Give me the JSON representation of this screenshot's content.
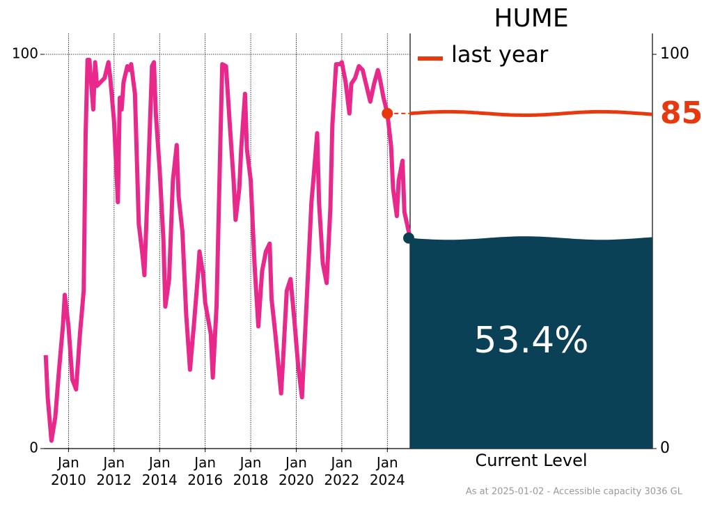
{
  "chart_data": {
    "type": "line",
    "title": "HUME",
    "x": [
      "2009-01",
      "2009-02",
      "2009-04",
      "2009-06",
      "2009-08",
      "2009-10",
      "2009-11",
      "2010-01",
      "2010-03",
      "2010-05",
      "2010-07",
      "2010-09",
      "2010-10",
      "2010-11",
      "2010-12",
      "2011-02",
      "2011-03",
      "2011-04",
      "2011-06",
      "2011-08",
      "2011-10",
      "2011-11",
      "2012-01",
      "2012-03",
      "2012-04",
      "2012-05",
      "2012-06",
      "2012-08",
      "2012-09",
      "2012-10",
      "2012-12",
      "2013-02",
      "2013-04",
      "2013-05",
      "2013-07",
      "2013-09",
      "2013-10",
      "2013-11",
      "2014-01",
      "2014-03",
      "2014-04",
      "2014-06",
      "2014-08",
      "2014-10",
      "2014-11",
      "2015-01",
      "2015-03",
      "2015-05",
      "2015-07",
      "2015-09",
      "2015-10",
      "2015-12",
      "2016-01",
      "2016-04",
      "2016-05",
      "2016-07",
      "2016-09",
      "2016-10",
      "2016-12",
      "2017-02",
      "2017-04",
      "2017-05",
      "2017-07",
      "2017-08",
      "2017-10",
      "2017-11",
      "2018-01",
      "2018-03",
      "2018-05",
      "2018-07",
      "2018-09",
      "2018-11",
      "2018-12",
      "2019-02",
      "2019-05",
      "2019-06",
      "2019-08",
      "2019-10",
      "2019-12",
      "2020-02",
      "2020-04",
      "2020-06",
      "2020-09",
      "2020-10",
      "2020-12",
      "2021-01",
      "2021-03",
      "2021-05",
      "2021-07",
      "2021-08",
      "2021-10",
      "2021-12",
      "2022-01",
      "2022-03",
      "2022-05",
      "2022-06",
      "2022-08",
      "2022-10",
      "2022-12",
      "2023-01",
      "2023-04",
      "2023-06",
      "2023-08",
      "2023-09",
      "2023-11",
      "2023-12",
      "2024-01",
      "2024-03",
      "2024-04",
      "2024-06",
      "2024-07",
      "2024-09",
      "2024-10",
      "2025-01"
    ],
    "series": [
      {
        "color": "#e8288a",
        "values": [
          23.7,
          13,
          2,
          8,
          20,
          31,
          39,
          31,
          17.5,
          15,
          29,
          40,
          80,
          98.6,
          98.6,
          86,
          98,
          92,
          93,
          94,
          98,
          94,
          83,
          62.5,
          89,
          86,
          93,
          97,
          96,
          97.5,
          90,
          57,
          49,
          44,
          70,
          97,
          98,
          85,
          71,
          53,
          36,
          43,
          68,
          77,
          64,
          55,
          34,
          20,
          31,
          43,
          50,
          44,
          37,
          29,
          18,
          36,
          78,
          97.5,
          97,
          82,
          68,
          58,
          66,
          76,
          90,
          76,
          68,
          47,
          31,
          45,
          50,
          52,
          38,
          29,
          14,
          22,
          40,
          43,
          32.5,
          21,
          13,
          32.5,
          62.5,
          68,
          80,
          62.5,
          47,
          42,
          61,
          82,
          97.5,
          97.5,
          98,
          93,
          85,
          92.5,
          94,
          97,
          96,
          94,
          88,
          92.5,
          96,
          94,
          89,
          87,
          85,
          76.7,
          66,
          59,
          68,
          73,
          60,
          53.4
        ]
      }
    ],
    "xlim": [
      "2008-12",
      "2025-01"
    ],
    "xticks": [
      {
        "value": "2010-01",
        "label": "Jan 2010"
      },
      {
        "value": "2012-01",
        "label": "Jan 2012"
      },
      {
        "value": "2014-01",
        "label": "Jan 2014"
      },
      {
        "value": "2016-01",
        "label": "Jan 2016"
      },
      {
        "value": "2018-01",
        "label": "Jan 2018"
      },
      {
        "value": "2020-01",
        "label": "Jan 2020"
      },
      {
        "value": "2022-01",
        "label": "Jan 2022"
      },
      {
        "value": "2024-01",
        "label": "Jan 2024"
      }
    ],
    "ylim": [
      0,
      100
    ],
    "yticks": [
      0,
      100
    ],
    "y2lim": [
      0,
      100
    ],
    "y2ticks": [
      0,
      100
    ],
    "grid": true,
    "last_year": {
      "label": "last year",
      "value": 85,
      "color": "#e8380d"
    },
    "current_level": {
      "label": "Current Level",
      "value": 53.4,
      "value_label": "53.4%",
      "color": "#0b4157"
    },
    "footnote": "As at 2025-01-02 - Accessible capacity 3036 GL"
  }
}
